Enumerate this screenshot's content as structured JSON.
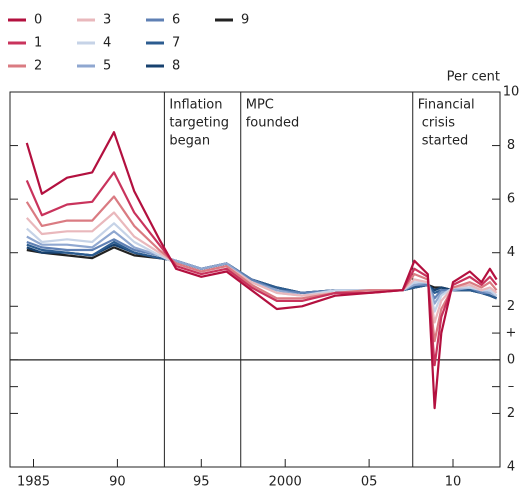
{
  "chart_data": {
    "type": "line",
    "y_axis_label": "Per cent",
    "x": [
      1984.6,
      1985.5,
      1987,
      1988.5,
      1989.8,
      1991,
      1992.5,
      1993.5,
      1995,
      1996.5,
      1998,
      1999.5,
      2001,
      2003,
      2005,
      2007,
      2007.7,
      2008.5,
      2008.9,
      2009.3,
      2010,
      2011,
      2011.7,
      2012.2,
      2012.6
    ],
    "series": [
      {
        "name": "0",
        "color": "#b3103f",
        "values": [
          8.1,
          6.2,
          6.8,
          7.0,
          8.5,
          6.3,
          4.5,
          3.4,
          3.1,
          3.3,
          2.6,
          1.9,
          2.0,
          2.4,
          2.5,
          2.6,
          3.7,
          3.2,
          -1.8,
          1.0,
          2.9,
          3.3,
          2.9,
          3.4,
          3.0
        ]
      },
      {
        "name": "1",
        "color": "#c9335c",
        "values": [
          6.7,
          5.4,
          5.8,
          5.9,
          7.0,
          5.5,
          4.3,
          3.5,
          3.2,
          3.4,
          2.7,
          2.2,
          2.2,
          2.5,
          2.5,
          2.6,
          3.4,
          3.1,
          -0.2,
          1.6,
          2.8,
          3.1,
          2.8,
          3.1,
          2.8
        ]
      },
      {
        "name": "2",
        "color": "#da7b82",
        "values": [
          5.9,
          5.0,
          5.2,
          5.2,
          6.1,
          5.0,
          4.1,
          3.6,
          3.3,
          3.5,
          2.8,
          2.3,
          2.3,
          2.5,
          2.6,
          2.6,
          3.2,
          3.0,
          0.7,
          1.9,
          2.7,
          2.9,
          2.7,
          2.9,
          2.6
        ]
      },
      {
        "name": "3",
        "color": "#e9b8bc",
        "values": [
          5.3,
          4.7,
          4.8,
          4.8,
          5.5,
          4.6,
          4.0,
          3.6,
          3.3,
          3.5,
          2.9,
          2.5,
          2.4,
          2.5,
          2.6,
          2.6,
          3.0,
          2.9,
          1.4,
          2.2,
          2.7,
          2.8,
          2.6,
          2.7,
          2.5
        ]
      },
      {
        "name": "4",
        "color": "#c6d3e7",
        "values": [
          4.9,
          4.4,
          4.5,
          4.4,
          5.1,
          4.4,
          3.9,
          3.6,
          3.3,
          3.5,
          2.9,
          2.5,
          2.4,
          2.6,
          2.6,
          2.6,
          2.9,
          2.9,
          1.8,
          2.4,
          2.7,
          2.7,
          2.6,
          2.6,
          2.4
        ]
      },
      {
        "name": "5",
        "color": "#8fa7d0",
        "values": [
          4.6,
          4.3,
          4.3,
          4.2,
          4.8,
          4.2,
          3.9,
          3.7,
          3.4,
          3.6,
          2.9,
          2.6,
          2.4,
          2.6,
          2.6,
          2.6,
          2.8,
          2.9,
          2.1,
          2.5,
          2.6,
          2.7,
          2.6,
          2.5,
          2.4
        ]
      },
      {
        "name": "6",
        "color": "#5f80b4",
        "values": [
          4.4,
          4.2,
          4.1,
          4.1,
          4.5,
          4.1,
          3.9,
          3.7,
          3.4,
          3.6,
          3.0,
          2.6,
          2.5,
          2.6,
          2.6,
          2.6,
          2.8,
          2.8,
          2.3,
          2.6,
          2.6,
          2.7,
          2.5,
          2.5,
          2.4
        ]
      },
      {
        "name": "7",
        "color": "#2c5c90",
        "values": [
          4.3,
          4.1,
          4.0,
          3.9,
          4.4,
          4.0,
          3.8,
          3.7,
          3.4,
          3.6,
          3.0,
          2.7,
          2.5,
          2.6,
          2.6,
          2.6,
          2.7,
          2.8,
          2.5,
          2.6,
          2.6,
          2.6,
          2.5,
          2.4,
          2.3
        ]
      },
      {
        "name": "8",
        "color": "#17416f",
        "values": [
          4.2,
          4.0,
          4.0,
          3.9,
          4.3,
          4.0,
          3.8,
          3.7,
          3.4,
          3.6,
          3.0,
          2.7,
          2.5,
          2.6,
          2.6,
          2.6,
          2.7,
          2.8,
          2.6,
          2.7,
          2.6,
          2.6,
          2.5,
          2.4,
          2.3
        ]
      },
      {
        "name": "9",
        "color": "#222222",
        "values": [
          4.1,
          4.0,
          3.9,
          3.8,
          4.2,
          3.9,
          3.8,
          3.7,
          3.4,
          3.6,
          3.0,
          2.7,
          2.5,
          2.6,
          2.6,
          2.6,
          2.7,
          2.8,
          2.7,
          2.7,
          2.6,
          2.6,
          2.5,
          2.4,
          2.3
        ]
      }
    ],
    "xlim": [
      1983.6,
      2012.8
    ],
    "xticks": [
      1985,
      {
        "value": 1990,
        "label": "90"
      },
      {
        "value": 1995,
        "label": "95"
      },
      2000,
      {
        "value": 2005,
        "label": "05"
      },
      {
        "value": 2010,
        "label": "10"
      }
    ],
    "ylim": [
      -4,
      10
    ],
    "yticks": [
      {
        "value": -4,
        "label": "4"
      },
      {
        "value": -2,
        "label": "2"
      },
      {
        "value": -1,
        "label": "–"
      },
      0,
      {
        "value": 1,
        "label": "+"
      },
      2,
      4,
      6,
      8,
      10
    ],
    "zero_line": true,
    "events": [
      {
        "x": 1992.8,
        "label": [
          "Inflation",
          "targeting",
          "began"
        ]
      },
      {
        "x": 1997.35,
        "label": [
          "MPC",
          "founded"
        ]
      },
      {
        "x": 2007.6,
        "label": [
          "Financial",
          "crisis",
          "started"
        ]
      }
    ]
  }
}
